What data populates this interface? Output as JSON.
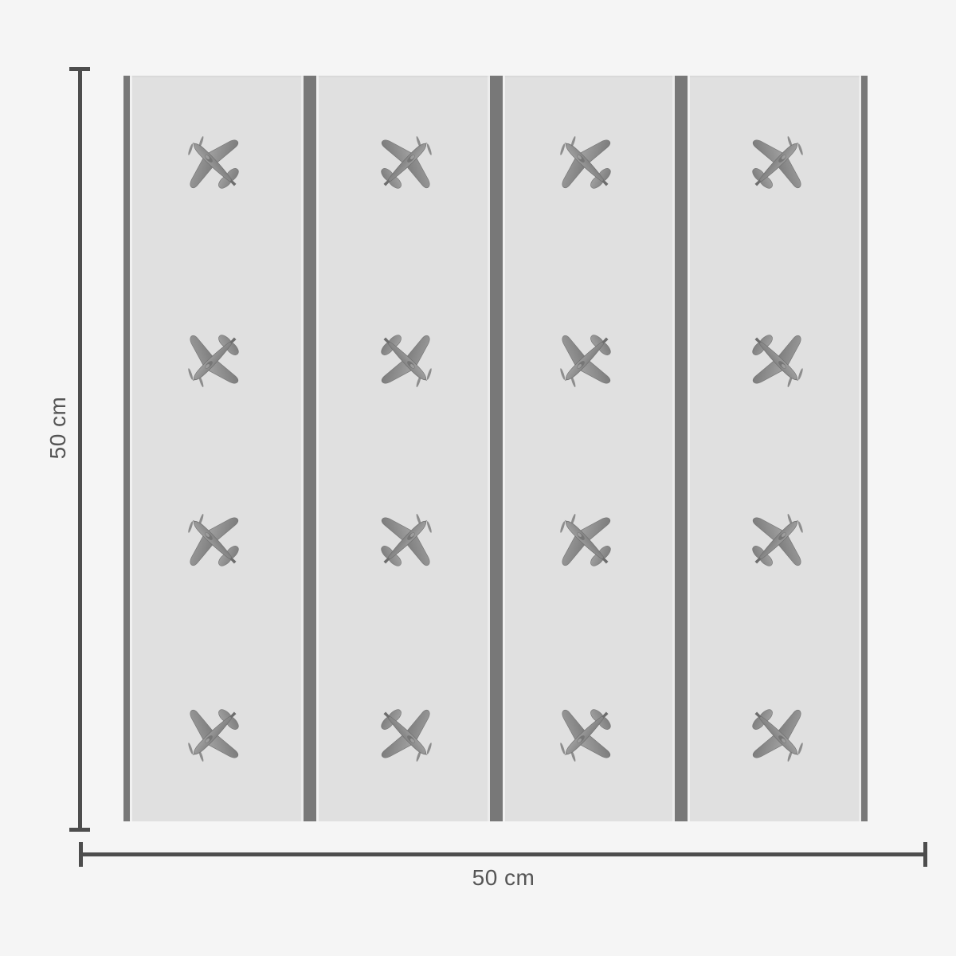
{
  "page": {
    "background": "#f5f5f5"
  },
  "swatch": {
    "rows": 4,
    "columns": 4,
    "airplane_count": 16,
    "background": "#e0e0e0",
    "stripe_count": 5,
    "stripe_color": "#787878",
    "stripe_highlight": "#ececec",
    "icon": "airplane-icon",
    "airplane_color": "#8e8e8e"
  },
  "dimensions": {
    "height_label": "50 cm",
    "width_label": "50 cm",
    "line_color": "#4d4d4d",
    "label_color": "#555555"
  }
}
